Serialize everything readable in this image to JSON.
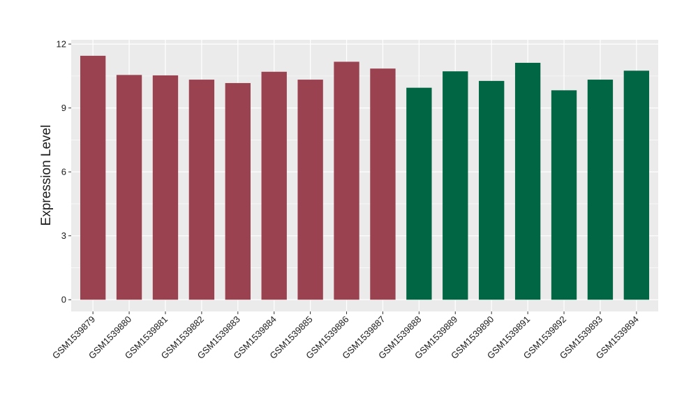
{
  "chart_data": {
    "type": "bar",
    "title": "",
    "xlabel": "",
    "ylabel": "Expression Level",
    "categories": [
      "GSM1539879",
      "GSM1539880",
      "GSM1539881",
      "GSM1539882",
      "GSM1539883",
      "GSM1539884",
      "GSM1539885",
      "GSM1539886",
      "GSM1539887",
      "GSM1539888",
      "GSM1539889",
      "GSM1539890",
      "GSM1539891",
      "GSM1539892",
      "GSM1539893",
      "GSM1539894"
    ],
    "values": [
      11.45,
      10.55,
      10.53,
      10.33,
      10.17,
      10.7,
      10.33,
      11.17,
      10.85,
      9.95,
      10.72,
      10.27,
      11.12,
      9.83,
      10.33,
      10.75
    ],
    "bar_colors": [
      "#9a4250",
      "#9a4250",
      "#9a4250",
      "#9a4250",
      "#9a4250",
      "#9a4250",
      "#9a4250",
      "#9a4250",
      "#9a4250",
      "#006644",
      "#006644",
      "#006644",
      "#006644",
      "#006644",
      "#006644",
      "#006644"
    ],
    "ylim": [
      -0.55,
      12.2
    ],
    "yticks": [
      0,
      3,
      6,
      9,
      12
    ],
    "grid": true,
    "legend": "none",
    "panel_background": "#ebebeb",
    "grid_color": "#ffffff"
  }
}
